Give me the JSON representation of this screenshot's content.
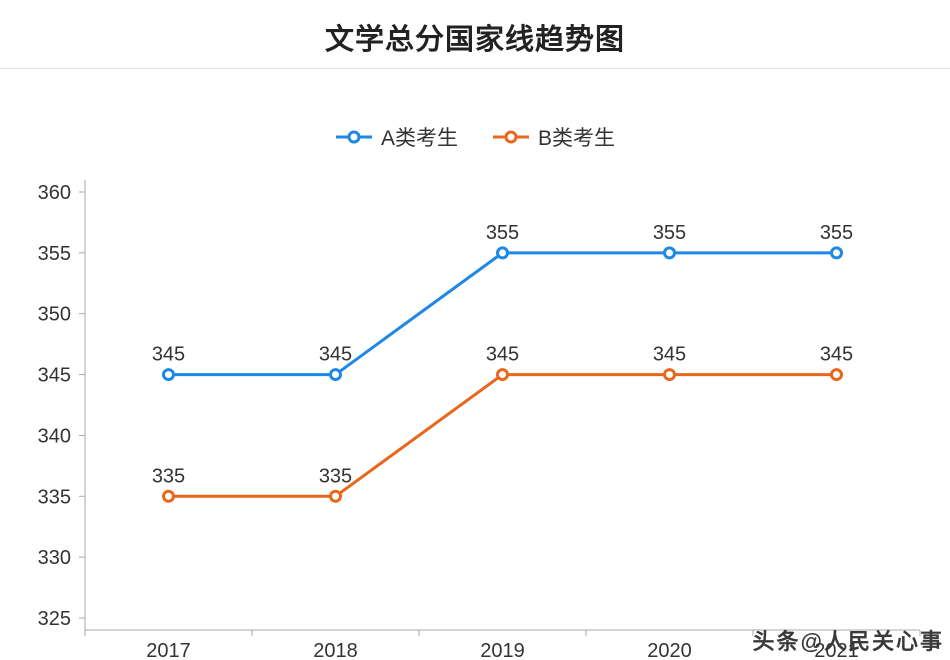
{
  "page": {
    "title": "文学总分国家线趋势图",
    "watermark": "头条@人民关心事"
  },
  "legend": {
    "items": [
      {
        "label": "A类考生"
      },
      {
        "label": "B类考生"
      }
    ]
  },
  "chart_data": {
    "type": "line",
    "title": "文学总分国家线趋势图",
    "categories": [
      "2017",
      "2018",
      "2019",
      "2020",
      "2021"
    ],
    "series": [
      {
        "name": "A类考生",
        "color": "#1E88E5",
        "values": [
          345,
          345,
          355,
          355,
          355
        ]
      },
      {
        "name": "B类考生",
        "color": "#E8671C",
        "values": [
          335,
          335,
          345,
          345,
          345
        ]
      }
    ],
    "xlabel": "",
    "ylabel": "",
    "ylim": [
      325,
      360
    ],
    "ytick_step": 5,
    "grid": false,
    "legend_position": "top",
    "marker": "circle-open",
    "data_labels": true
  }
}
